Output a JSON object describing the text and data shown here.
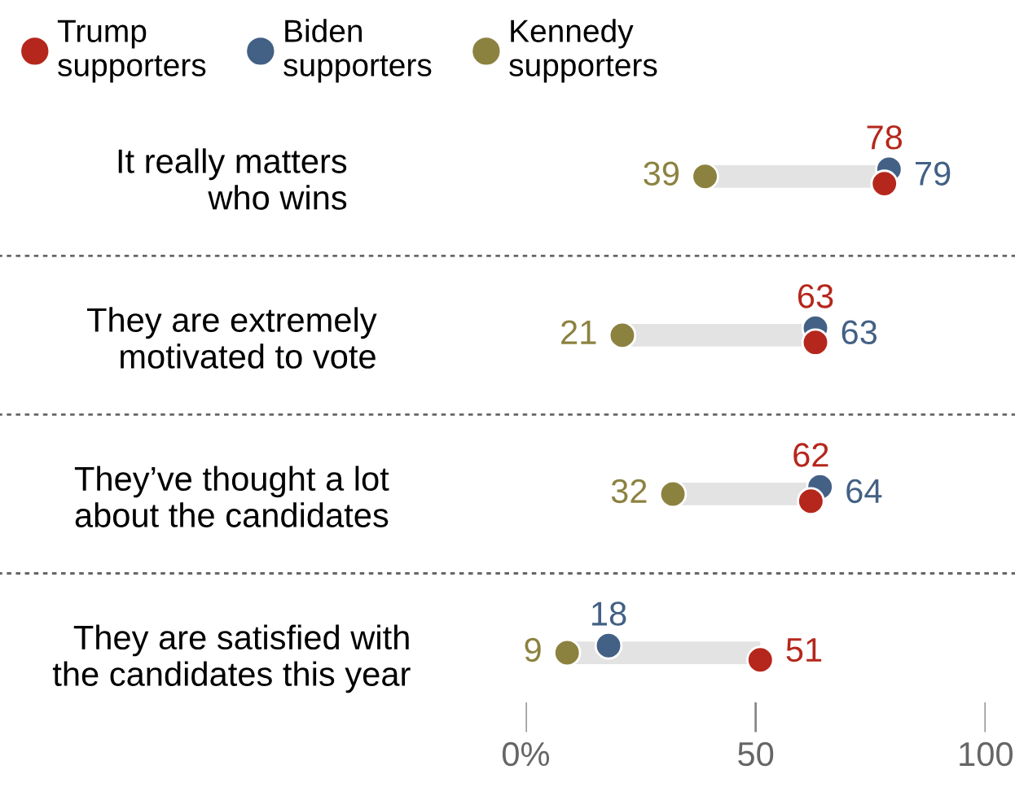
{
  "chart_data": {
    "type": "scatter",
    "orientation": "horizontal",
    "categories": [
      "It really matters\nwho wins",
      "They are extremely\nmotivated to vote",
      "They’ve thought a lot\nabout the candidates",
      "They are satisfied with\nthe candidates this year"
    ],
    "series": [
      {
        "name": "Trump\nsupporters",
        "color": "#b5271c",
        "values": [
          78,
          63,
          62,
          51
        ]
      },
      {
        "name": "Biden\nsupporters",
        "color": "#436085",
        "values": [
          79,
          63,
          64,
          18
        ]
      },
      {
        "name": "Kennedy\nsupporters",
        "color": "#8c8240",
        "values": [
          39,
          21,
          32,
          9
        ]
      }
    ],
    "xlim": [
      0,
      100
    ],
    "xticks": [
      {
        "value": 0,
        "label": "0%"
      },
      50,
      100
    ],
    "data_labels": true,
    "legend": "top",
    "marker": "circle",
    "grid": false
  }
}
